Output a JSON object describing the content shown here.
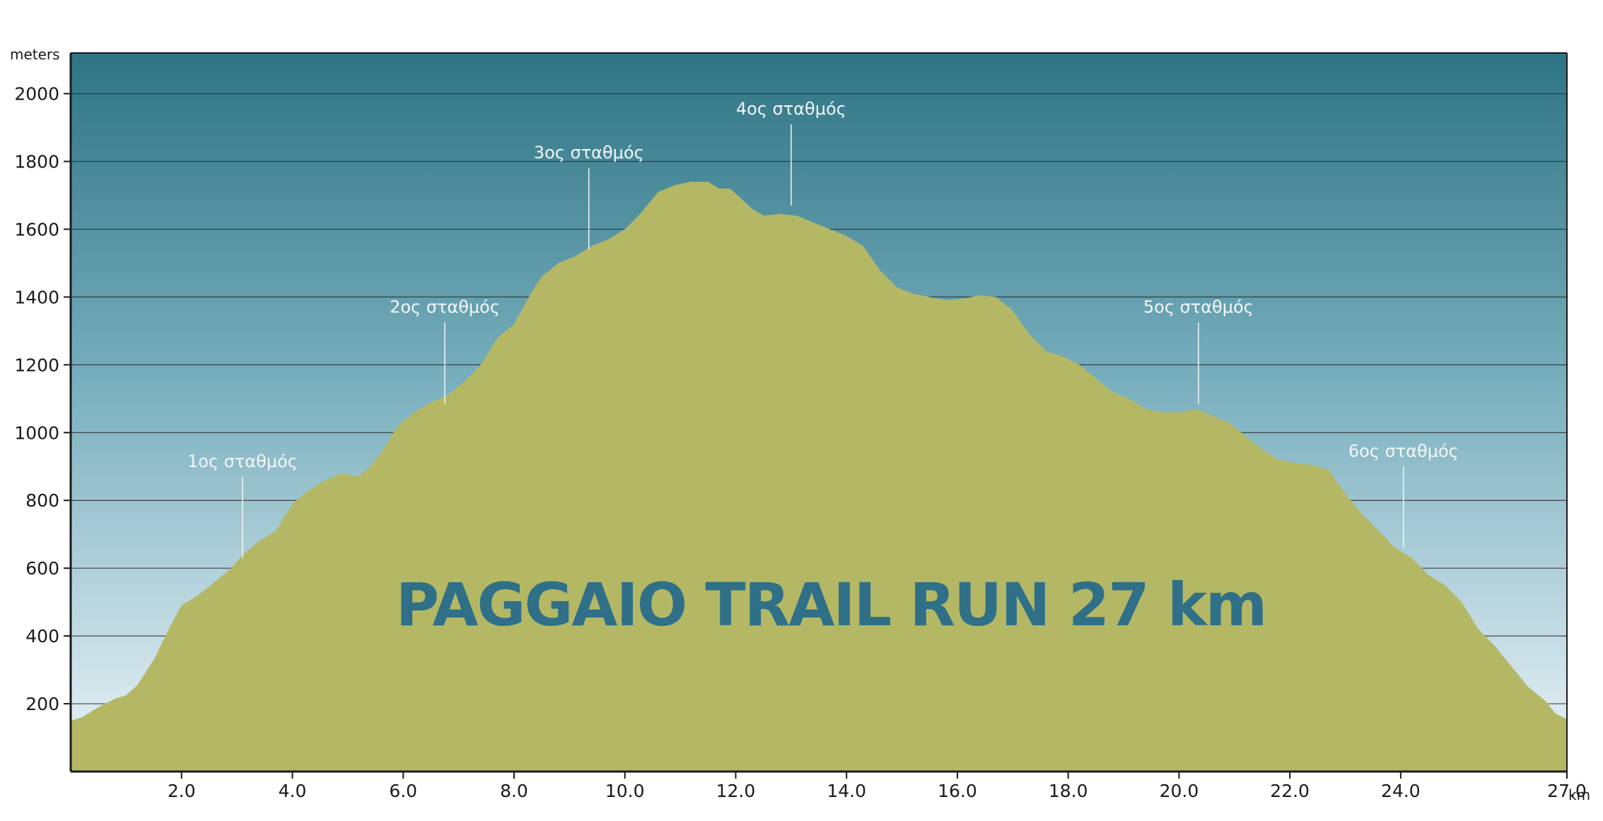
{
  "chart_data": {
    "type": "area",
    "title": "PAGGAIO TRAIL RUN 27 km",
    "ylabel": "meters",
    "xlabel": "km",
    "xlim": [
      0,
      27
    ],
    "ylim": [
      0,
      2120
    ],
    "x_ticks": [
      "2.0",
      "4.0",
      "6.0",
      "8.0",
      "10.0",
      "12.0",
      "14.0",
      "16.0",
      "18.0",
      "20.0",
      "22.0",
      "24.0",
      "27.0"
    ],
    "x_tick_values": [
      2,
      4,
      6,
      8,
      10,
      12,
      14,
      16,
      18,
      20,
      22,
      24,
      27
    ],
    "y_ticks": [
      "200",
      "400",
      "600",
      "800",
      "1000",
      "1200",
      "1400",
      "1600",
      "1800",
      "2000"
    ],
    "y_tick_values": [
      200,
      400,
      600,
      800,
      1000,
      1200,
      1400,
      1600,
      1800,
      2000
    ],
    "grid": true,
    "colors": {
      "fill": "#b4b865",
      "sky_top": "#2e7484",
      "sky_mid": "#77aebd",
      "sky_bottom": "#ecf4f8",
      "title": "#2f7088",
      "station_label": "#f2f6f7"
    },
    "profile": {
      "x": [
        0.0,
        0.2,
        0.5,
        0.8,
        1.0,
        1.2,
        1.5,
        1.8,
        2.0,
        2.3,
        2.6,
        2.9,
        3.1,
        3.4,
        3.7,
        4.0,
        4.3,
        4.6,
        4.9,
        5.2,
        5.4,
        5.6,
        5.9,
        6.2,
        6.5,
        6.8,
        7.1,
        7.4,
        7.7,
        8.0,
        8.3,
        8.5,
        8.8,
        9.1,
        9.4,
        9.7,
        10.0,
        10.3,
        10.6,
        10.9,
        11.2,
        11.5,
        11.7,
        11.9,
        12.1,
        12.3,
        12.5,
        12.8,
        13.1,
        13.4,
        13.7,
        14.0,
        14.3,
        14.6,
        14.9,
        15.2,
        15.5,
        15.8,
        16.1,
        16.4,
        16.7,
        17.0,
        17.3,
        17.6,
        17.9,
        18.2,
        18.5,
        18.8,
        19.1,
        19.4,
        19.7,
        20.0,
        20.3,
        20.6,
        20.9,
        21.2,
        21.5,
        21.8,
        22.1,
        22.4,
        22.7,
        23.0,
        23.3,
        23.6,
        23.9,
        24.2,
        24.5,
        24.8,
        25.1,
        25.4,
        25.7,
        26.0,
        26.3,
        26.6,
        26.8,
        27.0
      ],
      "y": [
        150,
        160,
        190,
        215,
        225,
        255,
        330,
        430,
        490,
        520,
        560,
        600,
        640,
        680,
        710,
        790,
        830,
        860,
        880,
        870,
        900,
        940,
        1020,
        1060,
        1090,
        1110,
        1150,
        1200,
        1280,
        1320,
        1410,
        1460,
        1500,
        1520,
        1550,
        1570,
        1600,
        1650,
        1710,
        1730,
        1740,
        1740,
        1720,
        1720,
        1690,
        1660,
        1640,
        1645,
        1640,
        1620,
        1600,
        1580,
        1550,
        1480,
        1430,
        1410,
        1400,
        1390,
        1395,
        1405,
        1400,
        1360,
        1290,
        1240,
        1225,
        1200,
        1160,
        1120,
        1100,
        1070,
        1060,
        1060,
        1070,
        1050,
        1030,
        990,
        950,
        920,
        910,
        905,
        890,
        820,
        760,
        710,
        660,
        630,
        580,
        550,
        500,
        420,
        370,
        310,
        250,
        210,
        170,
        155
      ]
    },
    "annotations": [
      {
        "label": "1ος σταθμός",
        "x": 3.1,
        "y": 630
      },
      {
        "label": "2ος σταθμός",
        "x": 6.75,
        "y": 1085
      },
      {
        "label": "3ος σταθμός",
        "x": 9.35,
        "y": 1540
      },
      {
        "label": "4ος σταθμός",
        "x": 13.0,
        "y": 1670
      },
      {
        "label": "5ος σταθμός",
        "x": 20.35,
        "y": 1085
      },
      {
        "label": "6ος σταθμός",
        "x": 24.05,
        "y": 660
      }
    ]
  }
}
